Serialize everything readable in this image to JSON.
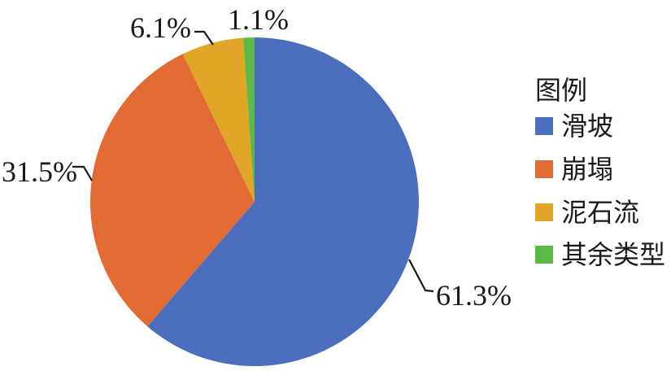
{
  "chart_data": {
    "type": "pie",
    "title": "",
    "legend_title": "图例",
    "legend_position": "right",
    "start_angle_deg": 0,
    "direction": "clockwise",
    "categories": [
      "滑坡",
      "崩塌",
      "泥石流",
      "其余类型"
    ],
    "values_pct": [
      61.3,
      31.5,
      6.1,
      1.1
    ],
    "slices": [
      {
        "label": "滑坡",
        "value_pct": 61.3,
        "pct_label": "61.3%",
        "color": "#4C6EBE"
      },
      {
        "label": "崩塌",
        "value_pct": 31.5,
        "pct_label": "31.5%",
        "color": "#E26B33"
      },
      {
        "label": "泥石流",
        "value_pct": 6.1,
        "pct_label": "6.1%",
        "color": "#E1A627"
      },
      {
        "label": "其余类型",
        "value_pct": 1.1,
        "pct_label": "1.1%",
        "color": "#5BBA46"
      }
    ],
    "label_color": "#1A1A1A",
    "leader_line_color": "#1A1A1A",
    "background": "#FFFFFF"
  }
}
